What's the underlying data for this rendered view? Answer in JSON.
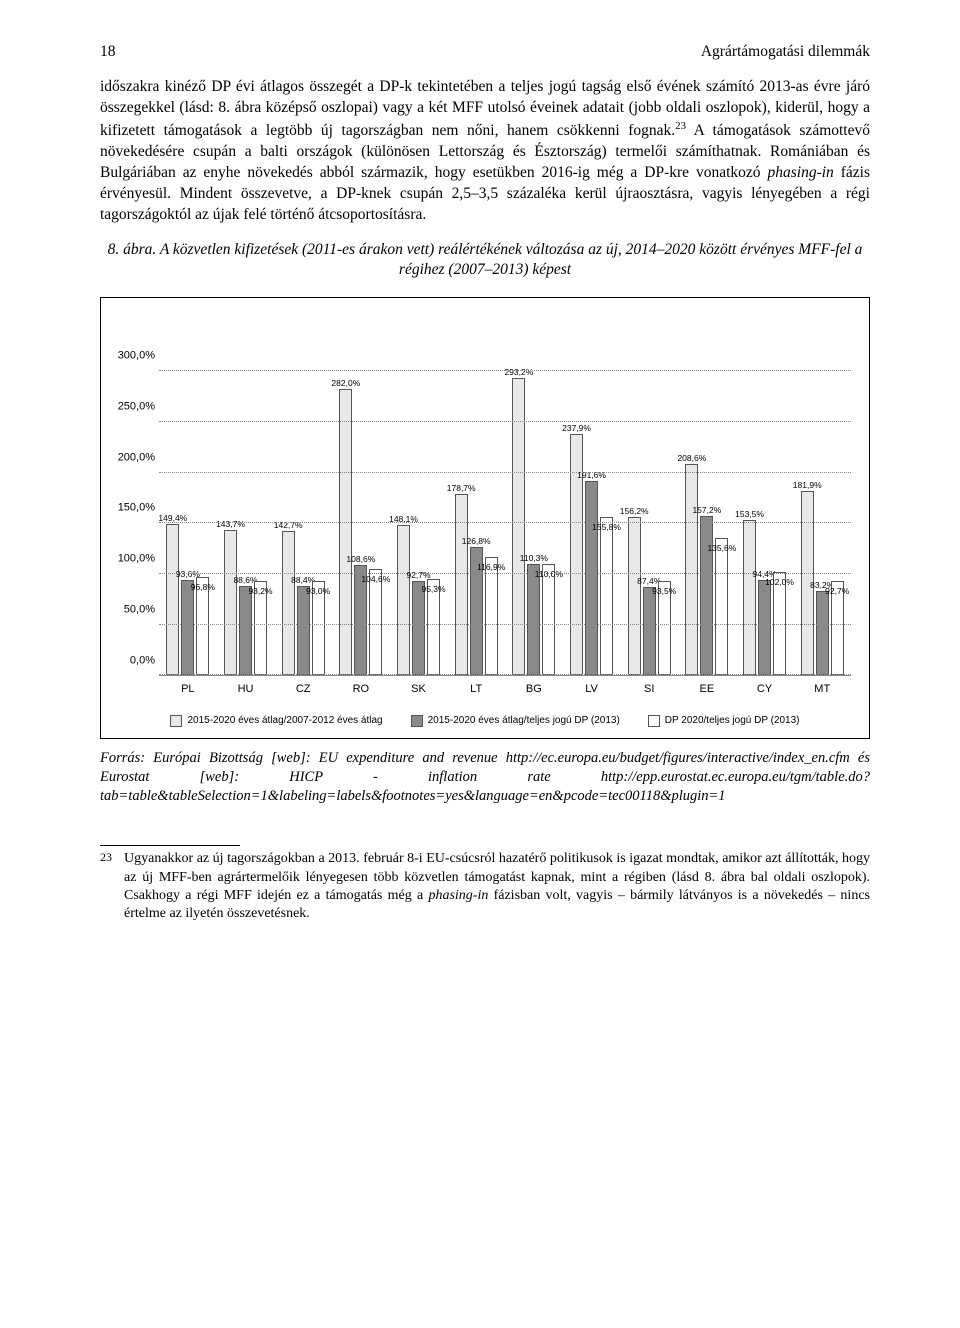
{
  "page_number": "18",
  "running_title": "Agrártámogatási dilemmák",
  "para1": "időszakra kinéző DP évi átlagos összegét a DP-k tekintetében a teljes jogú tagság első évének számító 2013-as évre járó összegekkel (lásd: 8. ábra középső oszlopai) vagy a két MFF utolsó éveinek adatait (jobb oldali oszlopok), kiderül, hogy a kifizetett támogatások a legtöbb új tagországban nem nőni, hanem csökkenni fognak.",
  "fn_ref": "23",
  "para1b": " A támogatások számottevő növekedésére csupán a balti országok (különösen Lettország és Észtország) termelői számíthatnak. Romániában és Bulgáriában az enyhe növekedés abból származik, hogy esetükben 2016-ig még a DP-kre vonatkozó ",
  "para1_it": "phasing-in",
  "para1c": " fázis érvényesül. Mindent összevetve, a DP-knek csupán 2,5–3,5 százaléka kerül újraosztásra, vagyis lényegében a régi tagországoktól az újak felé történő átcsoportosításra.",
  "caption": "8. ábra. A közvetlen kifizetések (2011-es árakon vett) reálértékének változása az új, 2014–2020 között érvényes MFF-fel a régihez (2007–2013) képest",
  "chart": {
    "type": "bar",
    "ylim": [
      0,
      350
    ],
    "yticks": [
      0,
      50,
      100,
      150,
      200,
      250,
      300
    ],
    "ytick_labels": [
      "0,0%",
      "50,0%",
      "100,0%",
      "150,0%",
      "200,0%",
      "250,0%",
      "300,0%"
    ],
    "legend": [
      {
        "label": "2015-2020 éves átlag/2007-2012 éves átlag",
        "color": "#e8e8e8"
      },
      {
        "label": "2015-2020 éves átlag/teljes jogú DP (2013)",
        "color": "#8a8a8a"
      },
      {
        "label": "DP 2020/teljes jogú DP (2013)",
        "color": "#ffffff"
      }
    ],
    "grid_color": "#888888",
    "bar_border": "#555555",
    "categories": [
      "PL",
      "HU",
      "CZ",
      "RO",
      "SK",
      "LT",
      "BG",
      "LV",
      "SI",
      "EE",
      "CY",
      "MT"
    ],
    "series1_color": "#e8e8e8",
    "series2_color": "#8a8a8a",
    "series3_color": "#ffffff",
    "data": [
      {
        "s1": 149.4,
        "s2": 93.6,
        "s3": 96.8,
        "l1": "149,4%",
        "l2": "93,6%",
        "l3": "96,8%"
      },
      {
        "s1": 143.7,
        "s2": 88.6,
        "s3": 93.2,
        "l1": "143,7%",
        "l2": "88,6%",
        "l3": "93,2%"
      },
      {
        "s1": 142.7,
        "s2": 88.4,
        "s3": 93.0,
        "l1": "142,7%",
        "l2": "88,4%",
        "l3": "93,0%"
      },
      {
        "s1": 282.0,
        "s2": 108.6,
        "s3": 104.6,
        "l1": "282,0%",
        "l2": "108,6%",
        "l3": "104,6%"
      },
      {
        "s1": 148.1,
        "s2": 92.7,
        "s3": 95.3,
        "l1": "148,1%",
        "l2": "92,7%",
        "l3": "95,3%"
      },
      {
        "s1": 178.7,
        "s2": 126.8,
        "s3": 116.9,
        "l1": "178,7%",
        "l2": "126,8%",
        "l3": "116,9%"
      },
      {
        "s1": 293.2,
        "s2": 110.3,
        "s3": 110.0,
        "l1": "293,2%",
        "l2": "110,3%",
        "l3": "110,0%"
      },
      {
        "s1": 237.9,
        "s2": 191.6,
        "s3": 155.8,
        "l1": "237,9%",
        "l2": "191,6%",
        "l3": "155,8%"
      },
      {
        "s1": 156.2,
        "s2": 87.4,
        "s3": 93.5,
        "l1": "156,2%",
        "l2": "87,4%",
        "l3": "93,5%"
      },
      {
        "s1": 208.6,
        "s2": 157.2,
        "s3": 135.6,
        "l1": "208,6%",
        "l2": "157,2%",
        "l3": "135,6%"
      },
      {
        "s1": 153.5,
        "s2": 94.4,
        "s3": 102.0,
        "l1": "153,5%",
        "l2": "94,4%",
        "l3": "102,0%"
      },
      {
        "s1": 181.9,
        "s2": 83.2,
        "s3": 92.7,
        "l1": "181,9%",
        "l2": "83,2%",
        "l3": "92,7%"
      }
    ]
  },
  "source": "Forrás: Európai Bizottság [web]: EU expenditure and revenue http://ec.europa.eu/budget/figures/interactive/index_en.cfm és Eurostat [web]: HICP - inflation rate http://epp.eurostat.ec.europa.eu/tgm/table.do?tab=table&tableSelection=1&labeling=labels&footnotes=yes&language=en&pcode=tec00118&plugin=1",
  "footnote_num": "23",
  "footnote_a": "Ugyanakkor az új tagországokban a 2013. február 8-i EU-csúcsról hazatérő politikusok is igazat mondtak, amikor azt állították, hogy az új MFF-ben agrártermelőik lényegesen több közvetlen támogatást kapnak, mint a régiben (lásd 8. ábra bal oldali oszlopok). Csakhogy a régi MFF idején ez a támogatás még a ",
  "footnote_it": "phasing-in",
  "footnote_b": " fázisban volt, vagyis – bármily látványos is a növekedés – nincs értelme az ilyetén összevetésnek."
}
